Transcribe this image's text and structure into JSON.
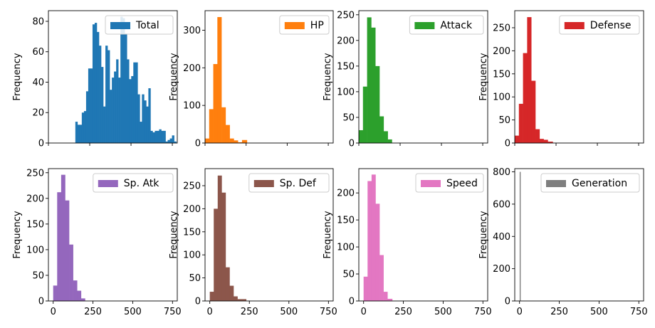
{
  "chart_data": [
    {
      "type": "bar",
      "title": "",
      "xlabel": "",
      "ylabel": "Frequency",
      "legend": "Total",
      "color": "#1f77b4",
      "xlim": [
        0,
        780
      ],
      "ylim": [
        0,
        87
      ],
      "xticks": [],
      "yticks": [
        0,
        20,
        40,
        60,
        80
      ],
      "bins": [
        [
          163,
          176,
          14
        ],
        [
          176,
          189,
          12
        ],
        [
          189,
          202,
          12
        ],
        [
          202,
          215,
          20
        ],
        [
          215,
          228,
          21
        ],
        [
          228,
          241,
          34
        ],
        [
          241,
          254,
          49
        ],
        [
          254,
          267,
          49
        ],
        [
          267,
          280,
          78
        ],
        [
          280,
          293,
          79
        ],
        [
          293,
          306,
          73
        ],
        [
          306,
          319,
          64
        ],
        [
          319,
          332,
          50
        ],
        [
          332,
          345,
          24
        ],
        [
          345,
          358,
          64
        ],
        [
          358,
          371,
          61
        ],
        [
          371,
          384,
          35
        ],
        [
          384,
          397,
          43
        ],
        [
          397,
          410,
          47
        ],
        [
          410,
          423,
          55
        ],
        [
          423,
          436,
          43
        ],
        [
          436,
          449,
          83
        ],
        [
          449,
          462,
          82
        ],
        [
          462,
          475,
          72
        ],
        [
          475,
          488,
          55
        ],
        [
          488,
          501,
          42
        ],
        [
          501,
          514,
          44
        ],
        [
          514,
          527,
          53
        ],
        [
          527,
          540,
          53
        ],
        [
          540,
          553,
          32
        ],
        [
          553,
          566,
          14
        ],
        [
          566,
          579,
          32
        ],
        [
          579,
          592,
          28
        ],
        [
          592,
          605,
          24
        ],
        [
          605,
          618,
          36
        ],
        [
          618,
          631,
          8
        ],
        [
          631,
          644,
          7
        ],
        [
          644,
          657,
          8
        ],
        [
          657,
          670,
          8
        ],
        [
          670,
          683,
          9
        ],
        [
          683,
          696,
          8
        ],
        [
          696,
          709,
          8
        ],
        [
          709,
          722,
          1
        ],
        [
          722,
          735,
          2
        ],
        [
          735,
          748,
          3
        ],
        [
          748,
          761,
          5
        ],
        [
          761,
          774,
          1
        ]
      ]
    },
    {
      "type": "bar",
      "title": "",
      "xlabel": "",
      "ylabel": "Frequency",
      "legend": "HP",
      "color": "#ff7f0e",
      "xlim": [
        0,
        780
      ],
      "ylim": [
        0,
        352
      ],
      "xticks": [],
      "yticks": [
        0,
        100,
        200,
        300
      ],
      "bins": [
        [
          0,
          25,
          12
        ],
        [
          25,
          50,
          90
        ],
        [
          50,
          75,
          210
        ],
        [
          75,
          100,
          335
        ],
        [
          100,
          125,
          95
        ],
        [
          125,
          150,
          48
        ],
        [
          150,
          175,
          12
        ],
        [
          175,
          200,
          7
        ],
        [
          200,
          225,
          2
        ],
        [
          225,
          255,
          8
        ]
      ]
    },
    {
      "type": "bar",
      "title": "",
      "xlabel": "",
      "ylabel": "Frequency",
      "legend": "Attack",
      "color": "#2ca02c",
      "xlim": [
        0,
        780
      ],
      "ylim": [
        0,
        258
      ],
      "xticks": [],
      "yticks": [
        0,
        50,
        100,
        150,
        200,
        250
      ],
      "bins": [
        [
          0,
          25,
          25
        ],
        [
          25,
          50,
          110
        ],
        [
          50,
          75,
          245
        ],
        [
          75,
          100,
          225
        ],
        [
          100,
          125,
          150
        ],
        [
          125,
          150,
          52
        ],
        [
          150,
          175,
          23
        ],
        [
          175,
          200,
          7
        ]
      ]
    },
    {
      "type": "bar",
      "title": "",
      "xlabel": "",
      "ylabel": "Frequency",
      "legend": "Defense",
      "color": "#d62728",
      "xlim": [
        0,
        780
      ],
      "ylim": [
        0,
        287
      ],
      "xticks": [],
      "yticks": [
        0,
        50,
        100,
        150,
        200,
        250
      ],
      "bins": [
        [
          0,
          25,
          16
        ],
        [
          25,
          50,
          85
        ],
        [
          50,
          75,
          195
        ],
        [
          75,
          100,
          273
        ],
        [
          100,
          125,
          135
        ],
        [
          125,
          150,
          30
        ],
        [
          150,
          175,
          9
        ],
        [
          175,
          200,
          7
        ],
        [
          200,
          230,
          3
        ]
      ]
    },
    {
      "type": "bar",
      "title": "",
      "xlabel": "",
      "ylabel": "Frequency",
      "legend": "Sp. Atk",
      "color": "#9467bd",
      "xlim": [
        -30,
        780
      ],
      "ylim": [
        0,
        258
      ],
      "xticks": [
        0,
        250,
        500,
        750
      ],
      "yticks": [
        0,
        50,
        100,
        150,
        200,
        250
      ],
      "bins": [
        [
          0,
          25,
          30
        ],
        [
          25,
          50,
          212
        ],
        [
          50,
          75,
          246
        ],
        [
          75,
          100,
          196
        ],
        [
          100,
          125,
          110
        ],
        [
          125,
          150,
          40
        ],
        [
          150,
          175,
          20
        ],
        [
          175,
          200,
          5
        ]
      ]
    },
    {
      "type": "bar",
      "title": "",
      "xlabel": "",
      "ylabel": "Frequency",
      "legend": "Sp. Def",
      "color": "#8c564b",
      "xlim": [
        -30,
        780
      ],
      "ylim": [
        0,
        287
      ],
      "xticks": [
        0,
        250,
        500,
        750
      ],
      "yticks": [
        0,
        50,
        100,
        150,
        200,
        250
      ],
      "bins": [
        [
          0,
          25,
          20
        ],
        [
          25,
          50,
          200
        ],
        [
          50,
          75,
          272
        ],
        [
          75,
          100,
          235
        ],
        [
          100,
          125,
          73
        ],
        [
          125,
          150,
          33
        ],
        [
          150,
          175,
          10
        ],
        [
          175,
          200,
          4
        ],
        [
          200,
          230,
          4
        ]
      ]
    },
    {
      "type": "bar",
      "title": "",
      "xlabel": "",
      "ylabel": "Frequency",
      "legend": "Speed",
      "color": "#e377c2",
      "xlim": [
        -30,
        780
      ],
      "ylim": [
        0,
        245
      ],
      "xticks": [
        0,
        250,
        500,
        750
      ],
      "yticks": [
        0,
        50,
        100,
        150,
        200
      ],
      "bins": [
        [
          0,
          25,
          45
        ],
        [
          25,
          50,
          222
        ],
        [
          50,
          75,
          234
        ],
        [
          75,
          100,
          180
        ],
        [
          100,
          125,
          85
        ],
        [
          125,
          150,
          17
        ],
        [
          150,
          180,
          4
        ]
      ]
    },
    {
      "type": "bar",
      "title": "",
      "xlabel": "",
      "ylabel": "Frequency",
      "legend": "Generation",
      "color": "#7f7f7f",
      "xlim": [
        -30,
        780
      ],
      "ylim": [
        0,
        820
      ],
      "xticks": [
        0,
        250,
        500,
        750
      ],
      "yticks": [
        0,
        200,
        400,
        600,
        800
      ],
      "bins": [
        [
          1,
          6,
          800
        ]
      ]
    }
  ]
}
